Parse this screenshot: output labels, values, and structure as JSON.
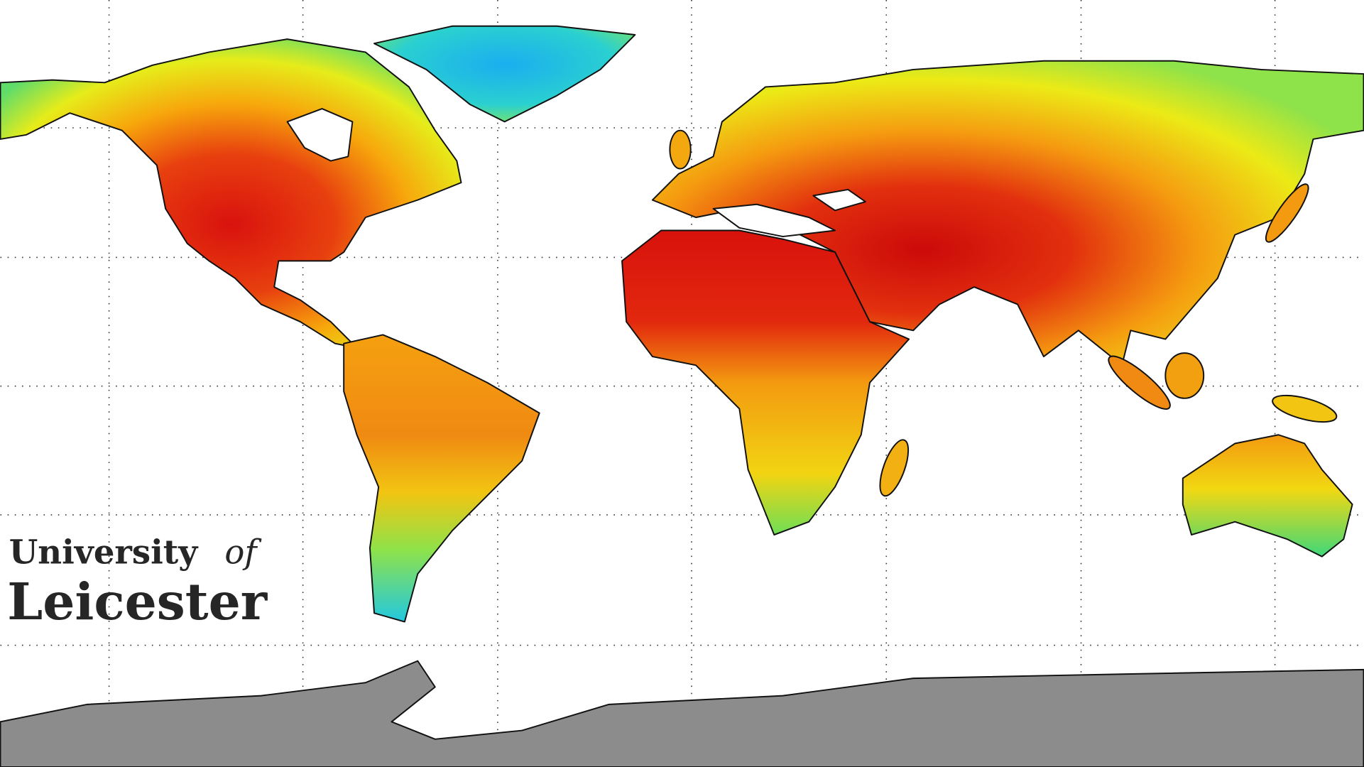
{
  "logo": {
    "name": "University",
    "connector": "of",
    "place": "Leicester"
  }
}
